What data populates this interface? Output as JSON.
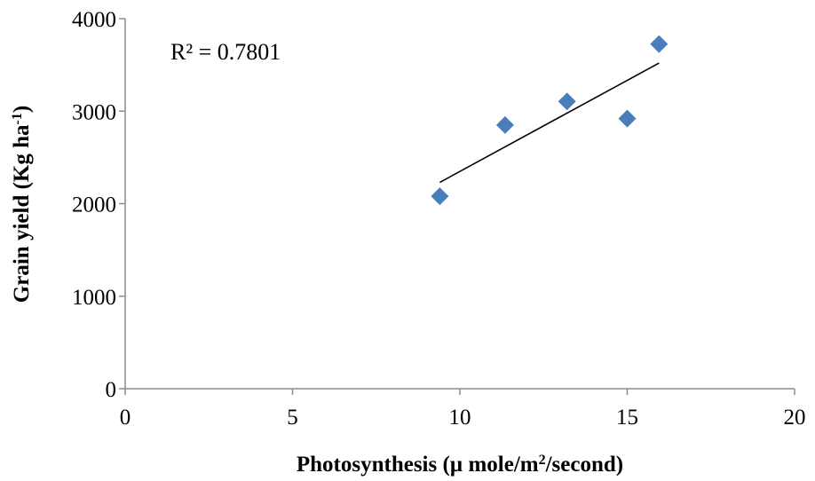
{
  "chart_data": {
    "type": "scatter",
    "title": "",
    "xlabel_parts": [
      "Photosynthesis (µ mole/m",
      "2",
      "/second)"
    ],
    "ylabel_parts": [
      "Grain yield (Kg ha",
      "-1",
      ")"
    ],
    "xlim": [
      0,
      20
    ],
    "ylim": [
      0,
      4000
    ],
    "x_ticks": [
      0,
      5,
      10,
      15,
      20
    ],
    "y_ticks": [
      0,
      1000,
      2000,
      3000,
      4000
    ],
    "grid": false,
    "legend": "none",
    "series": [
      {
        "points": [
          {
            "x": 9.4,
            "y": 2080
          },
          {
            "x": 11.35,
            "y": 2850
          },
          {
            "x": 13.2,
            "y": 3105
          },
          {
            "x": 15.0,
            "y": 2920
          },
          {
            "x": 15.95,
            "y": 3725
          }
        ],
        "marker": "diamond",
        "color": "#4a7ebb"
      }
    ],
    "trendline": {
      "type": "linear",
      "x_range": [
        9.4,
        15.95
      ],
      "y_at_ends": [
        2230,
        3520
      ],
      "color": "#000000"
    },
    "annotation": "R² = 0.7801"
  }
}
